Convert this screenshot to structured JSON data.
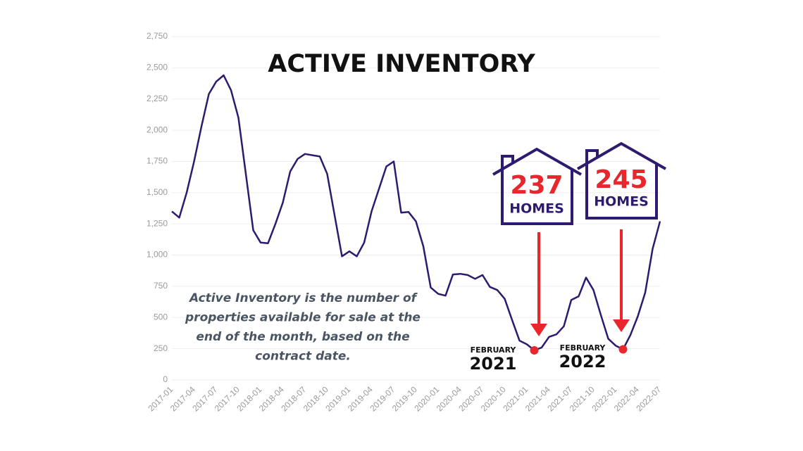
{
  "chart_data": {
    "type": "line",
    "title": "ACTIVE INVENTORY",
    "categories": [
      "2017-01",
      null,
      null,
      "2017-04",
      null,
      null,
      "2017-07",
      null,
      null,
      "2017-10",
      null,
      null,
      "2018-01",
      null,
      null,
      "2018-04",
      null,
      null,
      "2018-07",
      null,
      null,
      "2018-10",
      null,
      null,
      "2019-01",
      null,
      null,
      "2019-04",
      null,
      null,
      "2019-07",
      null,
      null,
      "2019-10",
      null,
      null,
      "2020-01",
      null,
      null,
      "2020-04",
      null,
      null,
      "2020-07",
      null,
      null,
      "2020-10",
      null,
      null,
      "2021-01",
      null,
      null,
      "2021-04",
      null,
      null,
      "2021-07",
      null,
      null,
      "2021-10",
      null,
      null,
      "2022-01",
      null,
      null,
      "2022-04",
      null,
      null,
      "2022-07"
    ],
    "series": [
      {
        "name": "Active Inventory",
        "color": "#2e1a6e",
        "values": [
          1350,
          1300,
          1500,
          1750,
          2030,
          2290,
          2390,
          2440,
          2320,
          2100,
          1650,
          1200,
          1100,
          1095,
          1250,
          1420,
          1670,
          1770,
          1810,
          1800,
          1790,
          1650,
          1320,
          990,
          1030,
          990,
          1100,
          1350,
          1530,
          1710,
          1750,
          1340,
          1345,
          1270,
          1070,
          740,
          690,
          675,
          845,
          850,
          840,
          810,
          840,
          745,
          720,
          650,
          480,
          315,
          285,
          237,
          260,
          345,
          365,
          430,
          640,
          670,
          820,
          720,
          520,
          330,
          275,
          245,
          360,
          510,
          700,
          1050,
          1270
        ]
      }
    ],
    "ylim": [
      0,
      2750
    ],
    "yticks": [
      0,
      250,
      500,
      750,
      {
        "value": 1000,
        "label": "1,000"
      },
      {
        "value": 1250,
        "label": "1,250"
      },
      {
        "value": 1500,
        "label": "1,500"
      },
      {
        "value": 1750,
        "label": "1,750"
      },
      {
        "value": 2000,
        "label": "2,000"
      },
      {
        "value": 2250,
        "label": "2,250"
      },
      {
        "value": 2500,
        "label": "2,500"
      },
      {
        "value": 2750,
        "label": "2,750"
      }
    ],
    "grid": true,
    "annotations": [
      {
        "number": "237",
        "unit": "HOMES",
        "month": "FEBRUARY",
        "year": "2021",
        "color": "#e8262b"
      },
      {
        "number": "245",
        "unit": "HOMES",
        "month": "FEBRUARY",
        "year": "2022",
        "color": "#e8262b"
      }
    ],
    "description": [
      "Active Inventory is the number of",
      "properties available for sale at the",
      "end of the month, based on the",
      "contract date."
    ]
  }
}
